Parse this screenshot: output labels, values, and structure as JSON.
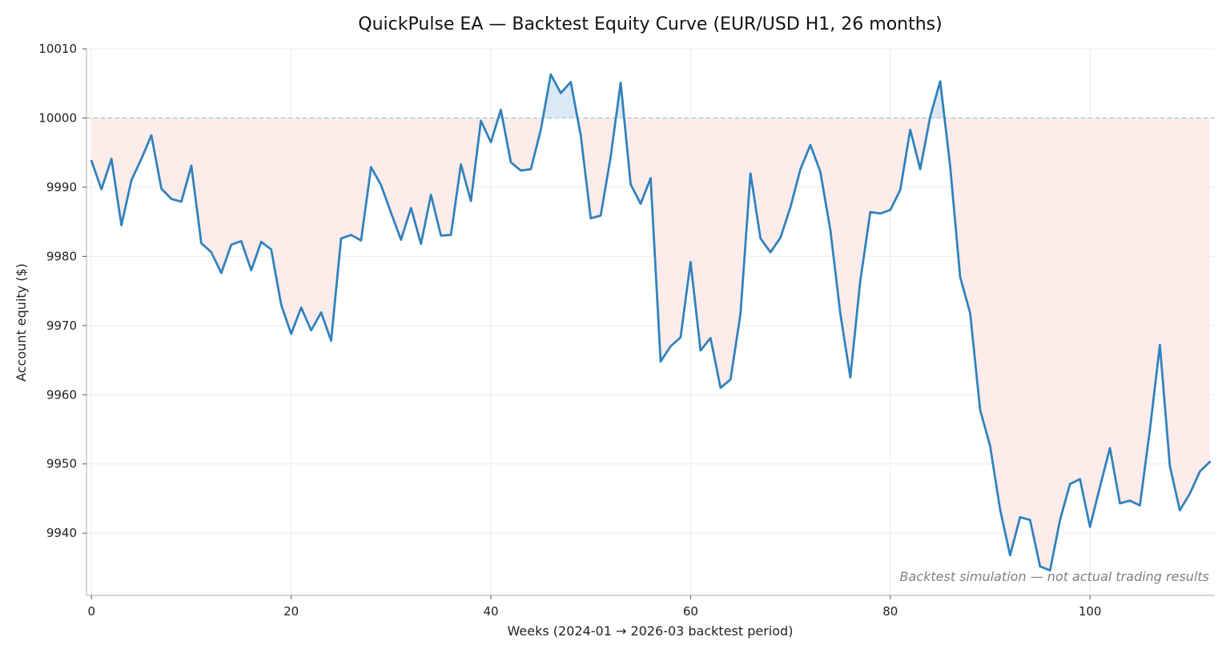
{
  "chart_data": {
    "type": "line",
    "title": "QuickPulse EA — Backtest Equity Curve (EUR/USD H1, 26 months)",
    "xlabel": "Weeks (2024-01 → 2026-03 backtest period)",
    "ylabel": "Account equity ($)",
    "xlim": [
      -0.5,
      112.5
    ],
    "ylim": [
      9931,
      10010
    ],
    "x_ticks": [
      0,
      20,
      40,
      60,
      80,
      100
    ],
    "y_ticks": [
      9940,
      9950,
      9960,
      9970,
      9980,
      9990,
      10000,
      10010
    ],
    "grid": true,
    "baseline": 10000,
    "annotation": "Backtest simulation — not actual trading results",
    "colors": {
      "line": "#3182bd",
      "above_fill": "#dbe9f6",
      "below_fill": "#fdecea",
      "baseline": "#9ecae1",
      "grid": "#ebebeb",
      "axis": "#bbbbbb"
    },
    "series": [
      {
        "values": [
          9993.8,
          9989.7,
          9994.1,
          9984.5,
          9991.0,
          9994.1,
          9997.5,
          9989.8,
          9988.3,
          9987.9,
          9993.1,
          9981.9,
          9980.6,
          9977.6,
          9981.7,
          9982.2,
          9978.0,
          9982.1,
          9981.0,
          9973.0,
          9968.8,
          9972.6,
          9969.3,
          9971.9,
          9967.8,
          9982.6,
          9983.1,
          9982.3,
          9992.9,
          9990.3,
          9986.3,
          9982.4,
          9987.0,
          9981.8,
          9988.9,
          9983.0,
          9983.1,
          9993.3,
          9988.0,
          9999.6,
          9996.5,
          10001.2,
          9993.6,
          9992.4,
          9992.6,
          9998.3,
          10006.3,
          10003.6,
          10005.2,
          9997.5,
          9985.5,
          9985.9,
          9994.4,
          10005.1,
          9990.4,
          9987.6,
          9991.3,
          9964.8,
          9967.0,
          9968.3,
          9979.2,
          9966.4,
          9968.2,
          9961.0,
          9962.2,
          9971.7,
          9992.0,
          9982.6,
          9980.6,
          9982.7,
          9987.1,
          9992.6,
          9996.1,
          9992.2,
          9983.8,
          9971.7,
          9962.5,
          9976.5,
          9986.4,
          9986.2,
          9986.7,
          9989.6,
          9998.3,
          9992.6,
          10000.2,
          10005.3,
          9993.0,
          9977.0,
          9971.8,
          9957.8,
          9952.6,
          9943.4,
          9936.8,
          9942.3,
          9941.9,
          9935.2,
          9934.6,
          9941.9,
          9947.1,
          9947.8,
          9940.9,
          9946.7,
          9952.3,
          9944.3,
          9944.7,
          9944.0,
          9954.9,
          9967.2,
          9949.7,
          9943.3,
          9945.7,
          9948.9,
          9950.3
        ]
      }
    ]
  }
}
